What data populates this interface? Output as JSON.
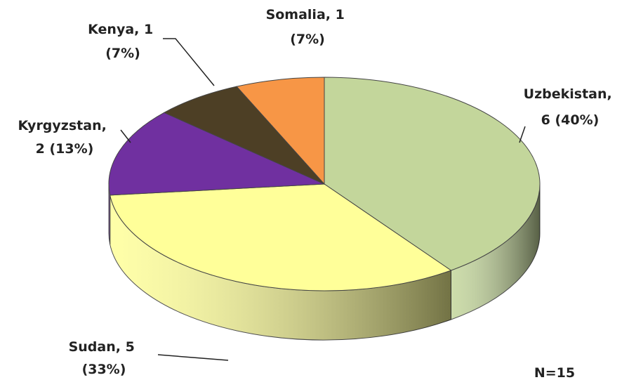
{
  "chart_data": {
    "type": "pie3d",
    "categories": [
      "Uzbekistan",
      "Sudan",
      "Kyrgyzstan",
      "Kenya",
      "Somalia"
    ],
    "values": [
      6,
      5,
      2,
      1,
      1
    ],
    "value_labels": [
      "Uzbekistan, 6 (40%)",
      "Sudan, 5 (33%)",
      "Kyrgyzstan, 2 (13%)",
      "Kenya, 1 (7%)",
      "Somalia, 1 (7%)"
    ],
    "colors": [
      "#c3d69b",
      "#ffff99",
      "#7030a0",
      "#4d3f25",
      "#f79646"
    ],
    "annotation": "N=15"
  }
}
